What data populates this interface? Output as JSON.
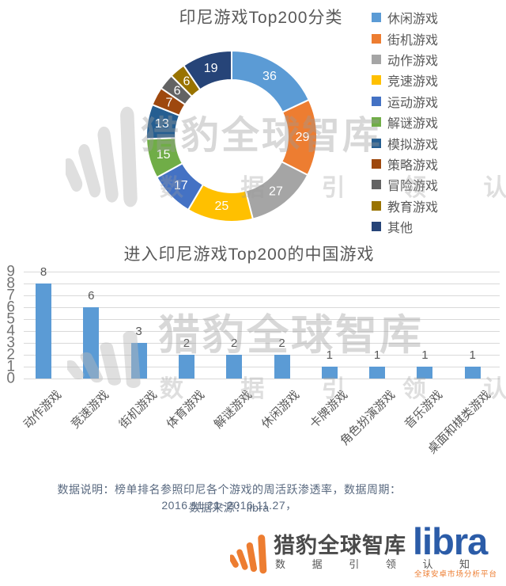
{
  "watermark": {
    "brand": "猎豹全球智库",
    "slogan": "数 据 引 领 认 知"
  },
  "chart_data": [
    {
      "type": "pie",
      "subtype": "donut",
      "title": "印尼游戏Top200分类",
      "labels": [
        "休闲游戏",
        "街机游戏",
        "动作游戏",
        "竞速游戏",
        "运动游戏",
        "解谜游戏",
        "模拟游戏",
        "策略游戏",
        "冒险游戏",
        "教育游戏",
        "其他"
      ],
      "values": [
        36,
        29,
        27,
        25,
        17,
        15,
        13,
        7,
        6,
        6,
        19
      ],
      "colors": [
        "#5B9BD5",
        "#ED7D31",
        "#A5A5A5",
        "#FFC000",
        "#4472C4",
        "#70AD47",
        "#255E91",
        "#9E480E",
        "#636363",
        "#997300",
        "#264478"
      ],
      "total": 200,
      "start_angle_deg": 0,
      "direction": "clockwise",
      "data_labels": "values-on-ring",
      "label_color": "#ffffff",
      "legend_position": "right"
    },
    {
      "type": "bar",
      "title": "进入印尼游戏Top200的中国游戏",
      "categories": [
        "动作游戏",
        "竞速游戏",
        "街机游戏",
        "体育游戏",
        "解谜游戏",
        "休闲游戏",
        "卡牌游戏",
        "角色扮演游戏",
        "音乐游戏",
        "桌面和棋类游戏"
      ],
      "values": [
        8,
        6,
        3,
        2,
        2,
        2,
        1,
        1,
        1,
        1
      ],
      "bar_color": "#5B9BD5",
      "xlabel": "",
      "ylabel": "",
      "ylim": [
        0,
        9
      ],
      "ytick_step": 1,
      "grid": true,
      "gridline_color": "#d9d9d9",
      "data_labels": true,
      "xtick_rotation_deg": 45
    }
  ],
  "footer": {
    "note_line1": "数据说明：榜单排名参照印尼各个游戏的周活跃渗透率，数据周期：2016.11.21~2016.11.27，",
    "note_line2": "数据来源：libra"
  },
  "logo": {
    "brand": "猎豹全球智库",
    "slogan": "数 据 引 领 认 知",
    "product": "libra",
    "product_sub": "全球安卓市场分析平台",
    "accent_orange": "#ED7D31",
    "libra_blue": "#2B5CA8",
    "brand_text_color": "#4a4a4a"
  }
}
